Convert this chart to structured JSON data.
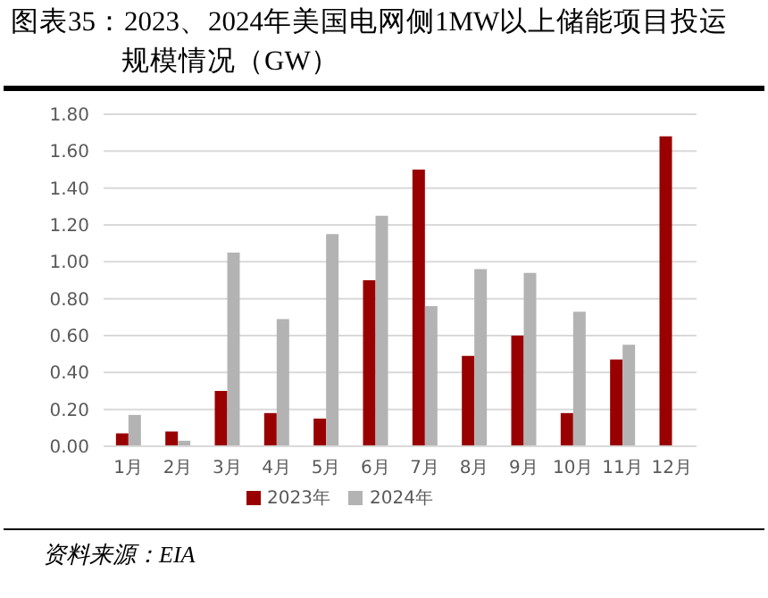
{
  "chart_data": {
    "type": "bar",
    "title": "图表35：2023、2024年美国电网侧1MW以上储能项目投运规模情况（GW）",
    "categories": [
      "1月",
      "2月",
      "3月",
      "4月",
      "5月",
      "6月",
      "7月",
      "8月",
      "9月",
      "10月",
      "11月",
      "12月"
    ],
    "series": [
      {
        "name": "2023年",
        "color": "#990000",
        "values": [
          0.07,
          0.08,
          0.3,
          0.18,
          0.15,
          0.9,
          1.5,
          0.49,
          0.6,
          0.18,
          0.47,
          1.68
        ]
      },
      {
        "name": "2024年",
        "color": "#b3b3b3",
        "values": [
          0.17,
          0.03,
          1.05,
          0.69,
          1.15,
          1.25,
          0.76,
          0.96,
          0.94,
          0.73,
          0.55,
          null
        ]
      }
    ],
    "ylim": [
      0,
      1.8
    ],
    "yticks": [
      {
        "value": 0,
        "label": "0.00"
      },
      {
        "value": 0.2,
        "label": "0.20"
      },
      {
        "value": 0.4,
        "label": "0.40"
      },
      {
        "value": 0.6,
        "label": "0.60"
      },
      {
        "value": 0.8,
        "label": "0.80"
      },
      {
        "value": 1,
        "label": "1.00"
      },
      {
        "value": 1.2,
        "label": "1.20"
      },
      {
        "value": 1.4,
        "label": "1.40"
      },
      {
        "value": 1.6,
        "label": "1.60"
      },
      {
        "value": 1.8,
        "label": "1.80"
      }
    ],
    "grid": "y",
    "legend": "bottom",
    "annotations": [
      "资料来源：EIA"
    ]
  }
}
